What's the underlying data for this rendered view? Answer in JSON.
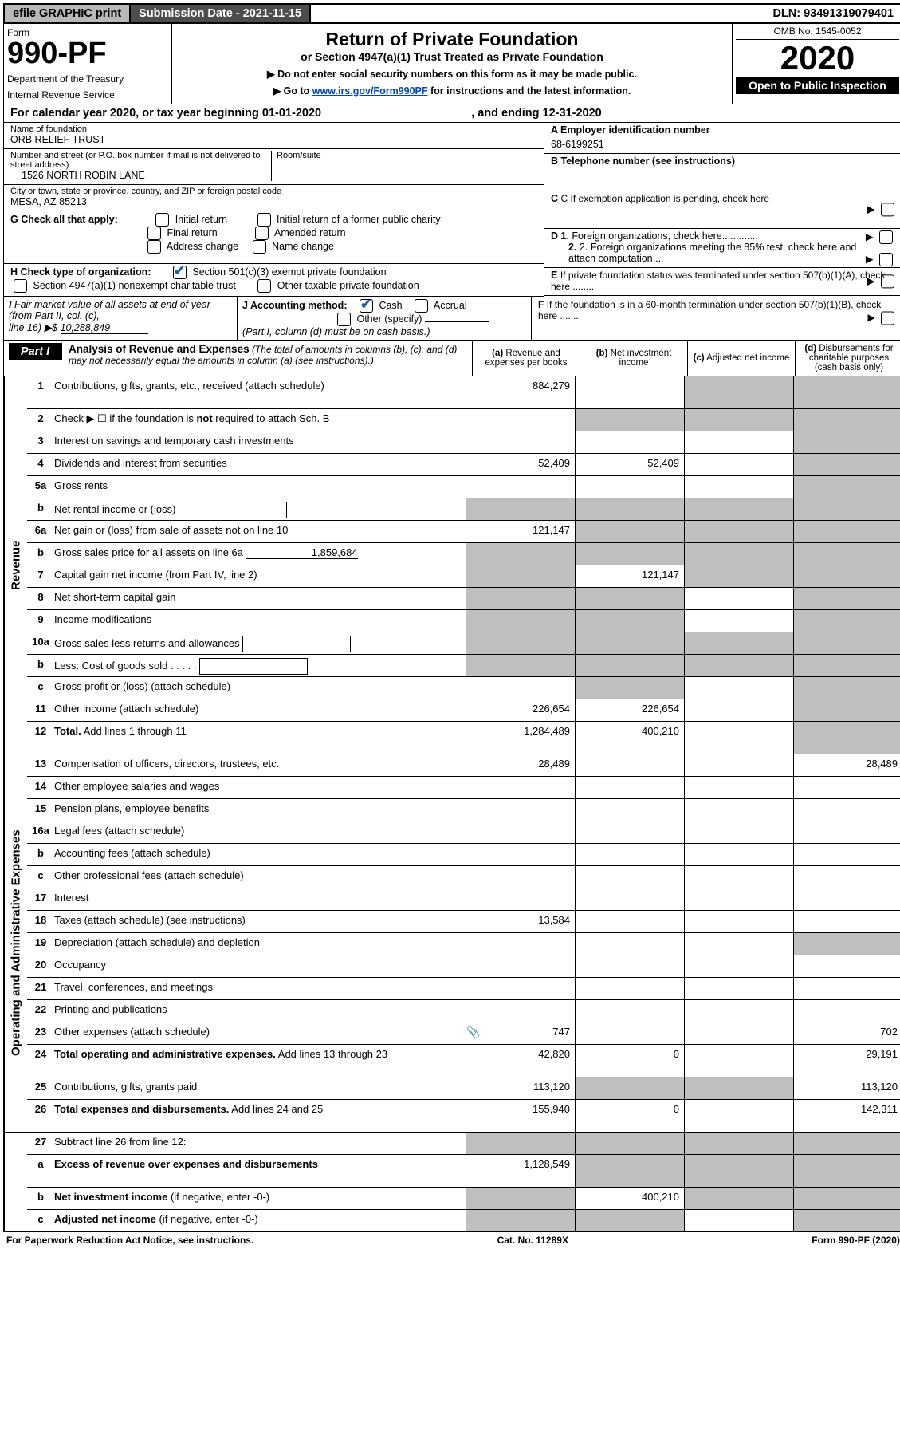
{
  "topbar": {
    "efile": "efile GRAPHIC print",
    "subdate": "Submission Date - 2021-11-15",
    "dln": "DLN: 93491319079401"
  },
  "header": {
    "formLabel": "Form",
    "formNo": "990-PF",
    "dept": "Department of the Treasury",
    "irs": "Internal Revenue Service",
    "title": "Return of Private Foundation",
    "sub": "or Section 4947(a)(1) Trust Treated as Private Foundation",
    "instr1": "▶ Do not enter social security numbers on this form as it may be made public.",
    "instr2a": "▶ Go to ",
    "instr2link": "www.irs.gov/Form990PF",
    "instr2b": " for instructions and the latest information.",
    "omb": "OMB No. 1545-0052",
    "year": "2020",
    "open": "Open to Public Inspection"
  },
  "caly": {
    "text": "For calendar year 2020, or tax year beginning 01-01-2020",
    "end": ", and ending 12-31-2020"
  },
  "info": {
    "nameLab": "Name of foundation",
    "name": "ORB RELIEF TRUST",
    "addrLab": "Number and street (or P.O. box number if mail is not delivered to street address)",
    "addr": "1526 NORTH ROBIN LANE",
    "roomLab": "Room/suite",
    "cityLab": "City or town, state or province, country, and ZIP or foreign postal code",
    "city": "MESA, AZ  85213",
    "einLab": "A Employer identification number",
    "ein": "68-6199251",
    "telLab": "B Telephone number (see instructions)",
    "cLab": "C If exemption application is pending, check here",
    "gLab": "G Check all that apply:",
    "g1": "Initial return",
    "g2": "Initial return of a former public charity",
    "g3": "Final return",
    "g4": "Amended return",
    "g5": "Address change",
    "g6": "Name change",
    "hLab": "H Check type of organization:",
    "h1": "Section 501(c)(3) exempt private foundation",
    "h2": "Section 4947(a)(1) nonexempt charitable trust",
    "h3": "Other taxable private foundation",
    "d1": "D 1. Foreign organizations, check here",
    "d2": "2. Foreign organizations meeting the 85% test, check here and attach computation ...",
    "eLab": "E  If private foundation status was terminated under section 507(b)(1)(A), check here ........",
    "iLab": "I Fair market value of all assets at end of year (from Part II, col. (c),",
    "iLine": "line 16) ▶$",
    "iVal": "10,288,849",
    "jLab": "J Accounting method:",
    "j1": "Cash",
    "j2": "Accrual",
    "j3": "Other (specify)",
    "jNote": "(Part I, column (d) must be on cash basis.)",
    "fLab": "F  If the foundation is in a 60-month termination under section 507(b)(1)(B), check here ........"
  },
  "part1": {
    "tab": "Part I",
    "title": "Analysis of Revenue and Expenses",
    "desc": "(The total of amounts in columns (b), (c), and (d) may not necessarily equal the amounts in column (a) (see instructions).)",
    "colA": "(a) Revenue and expenses per books",
    "colB": "(b) Net investment income",
    "colC": "(c) Adjusted net income",
    "colD": "(d) Disbursements for charitable purposes (cash basis only)"
  },
  "sections": {
    "revenue": "Revenue",
    "expenses": "Operating and Administrative Expenses"
  },
  "rows": [
    {
      "n": "1",
      "lab": "Contributions, gifts, grants, etc., received (attach schedule)",
      "a": "884,279",
      "b": "",
      "c": "g",
      "d": "g",
      "sec": 0,
      "h": 1
    },
    {
      "n": "2",
      "lab": "Check ▶ ☐ if the foundation is <b>not</b> required to attach Sch. B",
      "a": "",
      "b": "g",
      "c": "g",
      "d": "g",
      "sec": 0,
      "nobordA": 1
    },
    {
      "n": "3",
      "lab": "Interest on savings and temporary cash investments",
      "a": "",
      "b": "",
      "c": "",
      "d": "g",
      "sec": 0
    },
    {
      "n": "4",
      "lab": "Dividends and interest from securities",
      "a": "52,409",
      "b": "52,409",
      "c": "",
      "d": "g",
      "sec": 0
    },
    {
      "n": "5a",
      "lab": "Gross rents",
      "a": "",
      "b": "",
      "c": "",
      "d": "g",
      "sec": 0
    },
    {
      "n": "b",
      "lab": "Net rental income or (loss) <span class='subbox'></span>",
      "a": "g",
      "b": "g",
      "c": "g",
      "d": "g",
      "sec": 0
    },
    {
      "n": "6a",
      "lab": "Net gain or (loss) from sale of assets not on line 10",
      "a": "121,147",
      "b": "g",
      "c": "g",
      "d": "g",
      "sec": 0
    },
    {
      "n": "b",
      "lab": "Gross sales price for all assets on line 6a <span class='under' style='min-width:140px;text-align:right;'>1,859,684</span>",
      "a": "g",
      "b": "g",
      "c": "g",
      "d": "g",
      "sec": 0
    },
    {
      "n": "7",
      "lab": "Capital gain net income (from Part IV, line 2)",
      "a": "g",
      "b": "121,147",
      "c": "g",
      "d": "g",
      "sec": 0
    },
    {
      "n": "8",
      "lab": "Net short-term capital gain",
      "a": "g",
      "b": "g",
      "c": "",
      "d": "g",
      "sec": 0
    },
    {
      "n": "9",
      "lab": "Income modifications",
      "a": "g",
      "b": "g",
      "c": "",
      "d": "g",
      "sec": 0
    },
    {
      "n": "10a",
      "lab": "Gross sales less returns and allowances <span class='subbox'></span>",
      "a": "g",
      "b": "g",
      "c": "g",
      "d": "g",
      "sec": 0
    },
    {
      "n": "b",
      "lab": "Less: Cost of goods sold   .   .   .   .   . <span class='subbox'></span>",
      "a": "g",
      "b": "g",
      "c": "g",
      "d": "g",
      "sec": 0
    },
    {
      "n": "c",
      "lab": "Gross profit or (loss) (attach schedule)",
      "a": "",
      "b": "g",
      "c": "",
      "d": "g",
      "sec": 0
    },
    {
      "n": "11",
      "lab": "Other income (attach schedule)",
      "a": "226,654",
      "b": "226,654",
      "c": "",
      "d": "g",
      "sec": 0
    },
    {
      "n": "12",
      "lab": "<b>Total.</b> Add lines 1 through 11",
      "a": "1,284,489",
      "b": "400,210",
      "c": "",
      "d": "g",
      "sec": 0,
      "h": 1
    },
    {
      "n": "13",
      "lab": "Compensation of officers, directors, trustees, etc.",
      "a": "28,489",
      "b": "",
      "c": "",
      "d": "28,489",
      "sec": 1
    },
    {
      "n": "14",
      "lab": "Other employee salaries and wages",
      "a": "",
      "b": "",
      "c": "",
      "d": "",
      "sec": 1
    },
    {
      "n": "15",
      "lab": "Pension plans, employee benefits",
      "a": "",
      "b": "",
      "c": "",
      "d": "",
      "sec": 1
    },
    {
      "n": "16a",
      "lab": "Legal fees (attach schedule)",
      "a": "",
      "b": "",
      "c": "",
      "d": "",
      "sec": 1
    },
    {
      "n": "b",
      "lab": "Accounting fees (attach schedule)",
      "a": "",
      "b": "",
      "c": "",
      "d": "",
      "sec": 1
    },
    {
      "n": "c",
      "lab": "Other professional fees (attach schedule)",
      "a": "",
      "b": "",
      "c": "",
      "d": "",
      "sec": 1
    },
    {
      "n": "17",
      "lab": "Interest",
      "a": "",
      "b": "",
      "c": "",
      "d": "",
      "sec": 1
    },
    {
      "n": "18",
      "lab": "Taxes (attach schedule) (see instructions)",
      "a": "13,584",
      "b": "",
      "c": "",
      "d": "",
      "sec": 1
    },
    {
      "n": "19",
      "lab": "Depreciation (attach schedule) and depletion",
      "a": "",
      "b": "",
      "c": "",
      "d": "g",
      "sec": 1
    },
    {
      "n": "20",
      "lab": "Occupancy",
      "a": "",
      "b": "",
      "c": "",
      "d": "",
      "sec": 1
    },
    {
      "n": "21",
      "lab": "Travel, conferences, and meetings",
      "a": "",
      "b": "",
      "c": "",
      "d": "",
      "sec": 1
    },
    {
      "n": "22",
      "lab": "Printing and publications",
      "a": "",
      "b": "",
      "c": "",
      "d": "",
      "sec": 1
    },
    {
      "n": "23",
      "lab": "Other expenses (attach schedule)",
      "a": "747",
      "b": "",
      "c": "",
      "d": "702",
      "sec": 1,
      "icon": 1
    },
    {
      "n": "24",
      "lab": "<b>Total operating and administrative expenses.</b> Add lines 13 through 23",
      "a": "42,820",
      "b": "0",
      "c": "",
      "d": "29,191",
      "sec": 1,
      "h": 1
    },
    {
      "n": "25",
      "lab": "Contributions, gifts, grants paid",
      "a": "113,120",
      "b": "g",
      "c": "g",
      "d": "113,120",
      "sec": 1
    },
    {
      "n": "26",
      "lab": "<b>Total expenses and disbursements.</b> Add lines 24 and 25",
      "a": "155,940",
      "b": "0",
      "c": "",
      "d": "142,311",
      "sec": 1,
      "h": 1
    },
    {
      "n": "27",
      "lab": "Subtract line 26 from line 12:",
      "a": "g",
      "b": "g",
      "c": "g",
      "d": "g",
      "sec": 2
    },
    {
      "n": "a",
      "lab": "<b>Excess of revenue over expenses and disbursements</b>",
      "a": "1,128,549",
      "b": "g",
      "c": "g",
      "d": "g",
      "sec": 2,
      "h": 1
    },
    {
      "n": "b",
      "lab": "<b>Net investment income</b> (if negative, enter -0-)",
      "a": "g",
      "b": "400,210",
      "c": "g",
      "d": "g",
      "sec": 2
    },
    {
      "n": "c",
      "lab": "<b>Adjusted net income</b> (if negative, enter -0-)",
      "a": "g",
      "b": "g",
      "c": "",
      "d": "g",
      "sec": 2
    }
  ],
  "footer": {
    "left": "For Paperwork Reduction Act Notice, see instructions.",
    "mid": "Cat. No. 11289X",
    "right": "Form 990-PF (2020)"
  }
}
